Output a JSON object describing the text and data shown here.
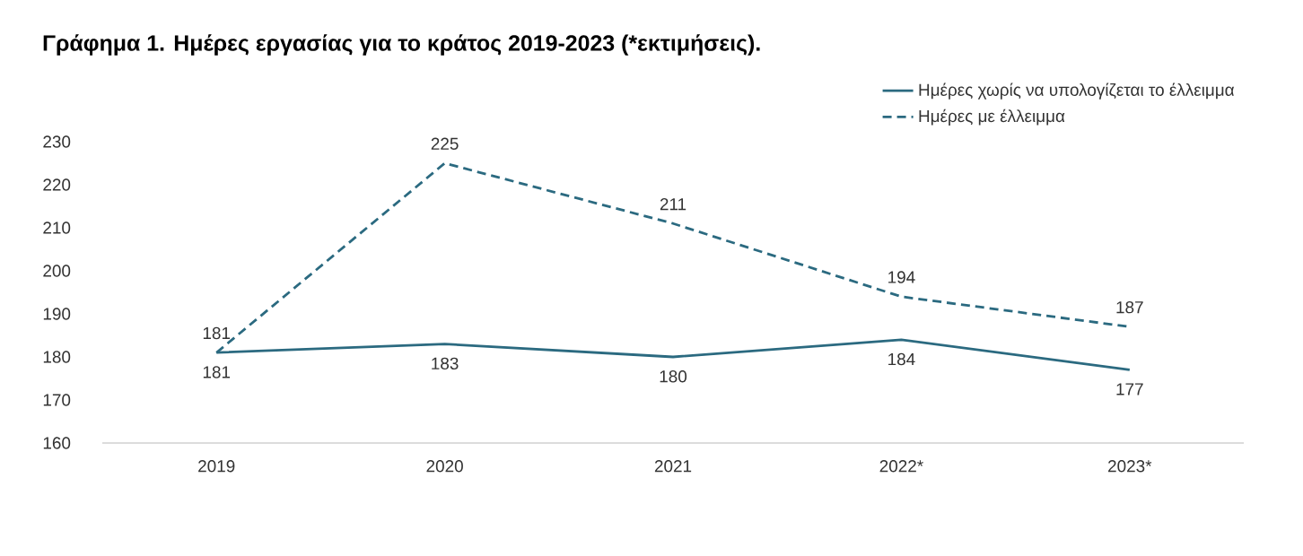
{
  "chart_data": {
    "type": "line",
    "title": "Γράφημα 1. Ημέρες εργασίας για το κράτος 2019-2023 (*εκτιμήσεις).",
    "categories": [
      "2019",
      "2020",
      "2021",
      "2022*",
      "2023*"
    ],
    "series": [
      {
        "name": "Ημέρες χωρίς να υπολογίζεται το έλλειμμα",
        "color": "#2b6a80",
        "line_style": "solid",
        "values": [
          181,
          183,
          180,
          184,
          177
        ]
      },
      {
        "name": "Ημέρες με έλλειμμα",
        "color": "#2b6a80",
        "line_style": "dashed",
        "values": [
          181,
          225,
          211,
          194,
          187
        ]
      }
    ],
    "ylim": [
      160,
      230
    ],
    "yticks": [
      160,
      170,
      180,
      190,
      200,
      210,
      220,
      230
    ],
    "data_labels": true,
    "legend": "top right",
    "grid": false
  }
}
